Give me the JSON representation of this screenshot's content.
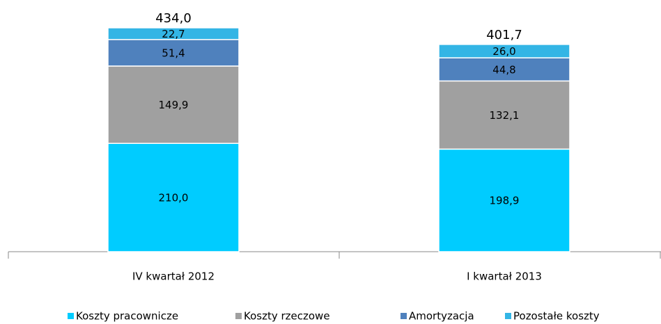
{
  "chart_data": {
    "type": "stacked-bar",
    "categories": [
      "IV kwartał 2012",
      "I kwartał 2013"
    ],
    "series": [
      {
        "name": "Koszty pracownicze",
        "color": "#00ccff",
        "values": [
          210.0,
          198.9
        ],
        "value_labels": [
          "210,0",
          "198,9"
        ]
      },
      {
        "name": "Koszty rzeczowe",
        "color": "#a0a0a0",
        "values": [
          149.9,
          132.1
        ],
        "value_labels": [
          "149,9",
          "132,1"
        ]
      },
      {
        "name": "Amortyzacja",
        "color": "#4f81bd",
        "values": [
          51.4,
          44.8
        ],
        "value_labels": [
          "51,4",
          "44,8"
        ]
      },
      {
        "name": "Pozostałe koszty",
        "color": "#33b5e5",
        "values": [
          22.7,
          26.0
        ],
        "value_labels": [
          "22,7",
          "26,0"
        ]
      }
    ],
    "totals": [
      434.0,
      401.7
    ],
    "total_labels": [
      "434,0",
      "401,7"
    ],
    "legend": "bottom"
  }
}
